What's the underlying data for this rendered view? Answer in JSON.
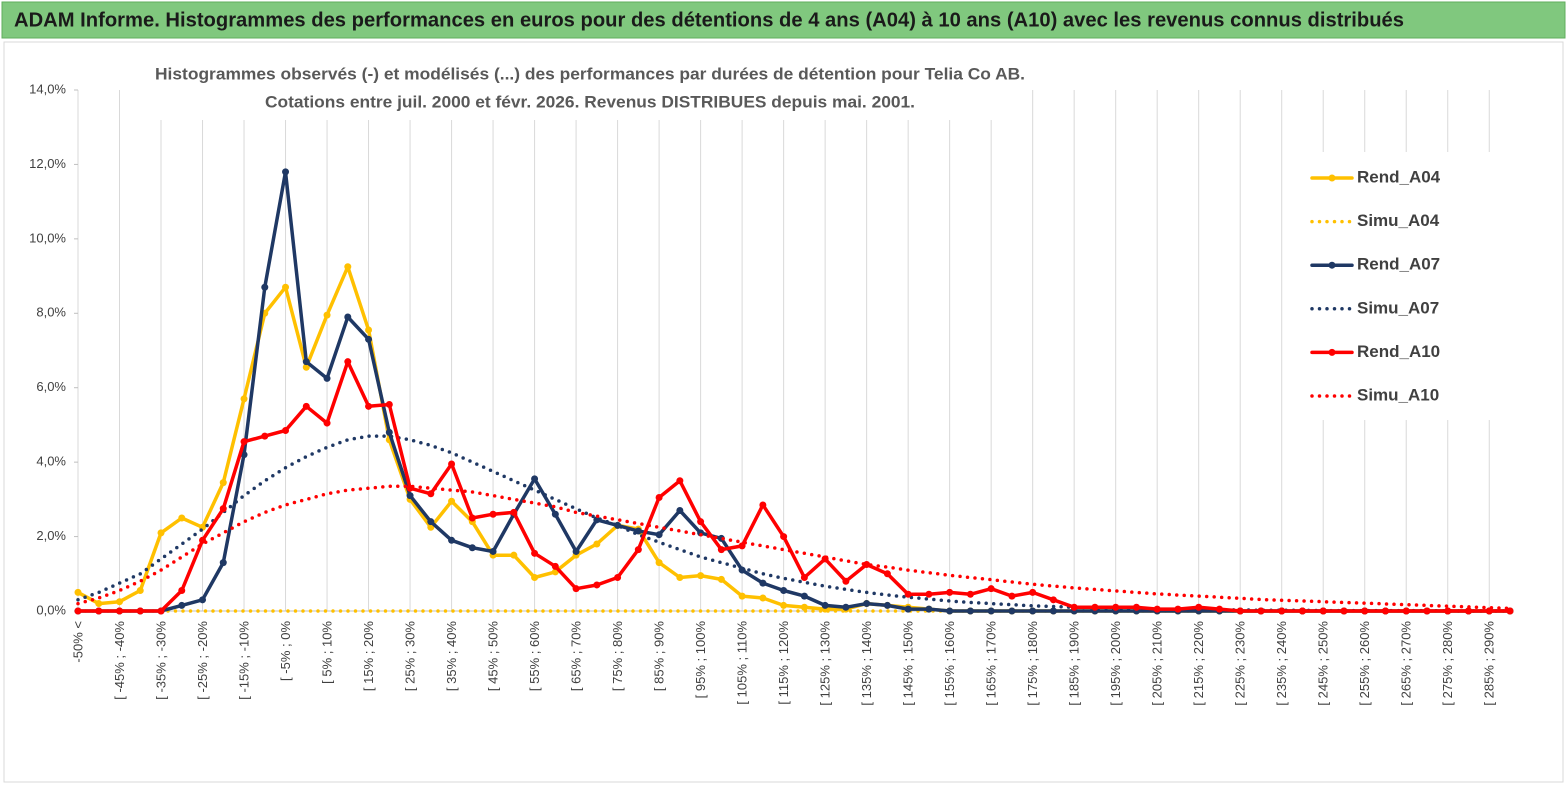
{
  "chart_data": {
    "type": "line",
    "header": "ADAM Informe. Histogrammes des performances en euros pour des détentions de 4 ans (A04) à 10 ans (A10) avec les revenus connus distribués",
    "title": "Histogrammes observés (-) et modélisés (...) des performances par durées de détention pour Telia Co AB.",
    "subtitle": "Cotations entre juil. 2000 et févr. 2026. Revenus DISTRIBUES depuis mai. 2001.",
    "categories": [
      "-50% <",
      null,
      "[ -45% ; -40%",
      null,
      "[ -35% ; -30%",
      null,
      "[ -25% ; -20%",
      null,
      "[ -15% ; -10%",
      null,
      "[ -5% ; 0%",
      null,
      "[ 5% ; 10%",
      null,
      "[ 15% ; 20%",
      null,
      "[ 25% ; 30%",
      null,
      "[ 35% ; 40%",
      null,
      "[ 45% ; 50%",
      null,
      "[ 55% ; 60%",
      null,
      "[ 65% ; 70%",
      null,
      "[ 75% ; 80%",
      null,
      "[ 85% ; 90%",
      null,
      "[ 95% ; 100%",
      null,
      "[ 105% ; 110%",
      null,
      "[ 115% ; 120%",
      null,
      "[ 125% ; 130%",
      null,
      "[ 135% ; 140%",
      null,
      "[ 145% ; 150%",
      null,
      "[ 155% ; 160%",
      null,
      "[ 165% ; 170%",
      null,
      "[ 175% ; 180%",
      null,
      "[ 185% ; 190%",
      null,
      "[ 195% ; 200%",
      null,
      "[ 205% ; 210%",
      null,
      "[ 215% ; 220%",
      null,
      "[ 225% ; 230%",
      null,
      "[ 235% ; 240%",
      null,
      "[ 245% ; 250%",
      null,
      "[ 255% ; 260%",
      null,
      "[ 265% ; 270%",
      null,
      "[ 275% ; 280%",
      null,
      "[ 285% ; 290%",
      null
    ],
    "ylim": [
      0,
      14
    ],
    "yticks": [
      {
        "value": 0,
        "label": "0,0%"
      },
      {
        "value": 2,
        "label": "2,0%"
      },
      {
        "value": 4,
        "label": "4,0%"
      },
      {
        "value": 6,
        "label": "6,0%"
      },
      {
        "value": 8,
        "label": "8,0%"
      },
      {
        "value": 10,
        "label": "10,0%"
      },
      {
        "value": 12,
        "label": "12,0%"
      },
      {
        "value": 14,
        "label": "14,0%"
      }
    ],
    "legend": "right",
    "series": [
      {
        "name": "Rend_A04",
        "color": "#ffc000",
        "style": "solid",
        "values": [
          0.5,
          0.2,
          0.25,
          0.55,
          2.1,
          2.5,
          2.25,
          3.45,
          5.7,
          8.0,
          8.7,
          6.55,
          7.95,
          9.25,
          7.55,
          4.6,
          3.0,
          2.25,
          2.95,
          2.4,
          1.5,
          1.5,
          0.9,
          1.05,
          1.5,
          1.8,
          2.3,
          2.2,
          1.3,
          0.9,
          0.95,
          0.85,
          0.4,
          0.35,
          0.15,
          0.1,
          0.05,
          0.05,
          0.2,
          0.15,
          0.1,
          0.05,
          0,
          0,
          0,
          0,
          0,
          0,
          0,
          0,
          0,
          0,
          0,
          0,
          0,
          0,
          0,
          0,
          0,
          0,
          0,
          0,
          0,
          0,
          0,
          0,
          0,
          0,
          0,
          0
        ]
      },
      {
        "name": "Simu_A04",
        "color": "#ffc000",
        "style": "dotted",
        "values": [
          0,
          0,
          0,
          0,
          0,
          0,
          0,
          0,
          0,
          0,
          0,
          0,
          0,
          0,
          0,
          0,
          0,
          0,
          0,
          0,
          0,
          0,
          0,
          0,
          0,
          0,
          0,
          0,
          0,
          0,
          0,
          0,
          0,
          0,
          0,
          0,
          0,
          0,
          0,
          0,
          0,
          0,
          0,
          0,
          0,
          0,
          0,
          0,
          0,
          0,
          0,
          0,
          0,
          0,
          0,
          0,
          0,
          0,
          0,
          0,
          0,
          0,
          0,
          0,
          0,
          0,
          0,
          0,
          0,
          0
        ]
      },
      {
        "name": "Rend_A07",
        "color": "#1f3864",
        "style": "solid",
        "values": [
          0,
          0,
          0,
          0,
          0,
          0.15,
          0.3,
          1.3,
          4.2,
          8.7,
          11.8,
          6.7,
          6.25,
          7.9,
          7.3,
          4.8,
          3.1,
          2.4,
          1.9,
          1.7,
          1.6,
          2.6,
          3.55,
          2.6,
          1.6,
          2.45,
          2.3,
          2.15,
          2.05,
          2.7,
          2.1,
          1.95,
          1.1,
          0.75,
          0.55,
          0.4,
          0.15,
          0.1,
          0.2,
          0.15,
          0.05,
          0.05,
          0,
          0,
          0,
          0,
          0,
          0,
          0,
          0,
          0,
          0,
          0,
          0,
          0,
          0,
          0,
          0,
          0,
          0,
          0,
          0,
          0,
          0,
          0,
          0,
          0,
          0,
          0,
          0
        ]
      },
      {
        "name": "Simu_A07",
        "color": "#1f3864",
        "style": "dotted",
        "values": [
          0.3,
          0.5,
          0.75,
          1.0,
          1.4,
          1.8,
          2.2,
          2.65,
          3.1,
          3.5,
          3.85,
          4.15,
          4.4,
          4.6,
          4.7,
          4.7,
          4.6,
          4.45,
          4.25,
          4.0,
          3.75,
          3.5,
          3.25,
          3.0,
          2.75,
          2.5,
          2.3,
          2.05,
          1.85,
          1.65,
          1.45,
          1.3,
          1.15,
          1.0,
          0.88,
          0.77,
          0.67,
          0.58,
          0.5,
          0.43,
          0.37,
          0.32,
          0.27,
          0.23,
          0.2,
          0.17,
          0.14,
          0.12,
          0.1,
          0.09,
          0.07,
          0.06,
          0.05,
          0.04,
          0.04,
          0.03,
          0.03,
          0.02,
          0.02,
          0.02,
          0.01,
          0.01,
          0.01,
          0.01,
          0.01,
          0.01,
          0,
          0,
          0,
          0
        ]
      },
      {
        "name": "Rend_A10",
        "color": "#ff0000",
        "style": "solid",
        "values": [
          0,
          0,
          0,
          0,
          0,
          0.55,
          1.9,
          2.75,
          4.55,
          4.7,
          4.85,
          5.5,
          5.05,
          6.7,
          5.5,
          5.55,
          3.3,
          3.15,
          3.95,
          2.5,
          2.6,
          2.65,
          1.55,
          1.2,
          0.6,
          0.7,
          0.9,
          1.65,
          3.05,
          3.5,
          2.4,
          1.65,
          1.75,
          2.85,
          2.0,
          0.9,
          1.4,
          0.8,
          1.25,
          1.0,
          0.45,
          0.45,
          0.5,
          0.45,
          0.6,
          0.4,
          0.5,
          0.3,
          0.1,
          0.1,
          0.1,
          0.1,
          0.05,
          0.05,
          0.1,
          0.05,
          0,
          0,
          0,
          0,
          0,
          0,
          0,
          0,
          0,
          0,
          0,
          0,
          0,
          0
        ]
      },
      {
        "name": "Simu_A10",
        "color": "#ff0000",
        "style": "dotted",
        "values": [
          0.2,
          0.35,
          0.55,
          0.8,
          1.1,
          1.45,
          1.8,
          2.1,
          2.4,
          2.65,
          2.85,
          3.0,
          3.15,
          3.25,
          3.3,
          3.35,
          3.35,
          3.3,
          3.25,
          3.2,
          3.1,
          3.0,
          2.9,
          2.8,
          2.65,
          2.55,
          2.45,
          2.35,
          2.25,
          2.15,
          2.05,
          1.95,
          1.85,
          1.75,
          1.65,
          1.55,
          1.45,
          1.35,
          1.25,
          1.18,
          1.1,
          1.03,
          0.96,
          0.9,
          0.84,
          0.78,
          0.72,
          0.67,
          0.62,
          0.58,
          0.54,
          0.5,
          0.46,
          0.43,
          0.4,
          0.37,
          0.34,
          0.31,
          0.29,
          0.27,
          0.25,
          0.23,
          0.21,
          0.19,
          0.17,
          0.15,
          0.13,
          0.11,
          0.09,
          0.07
        ]
      }
    ]
  }
}
